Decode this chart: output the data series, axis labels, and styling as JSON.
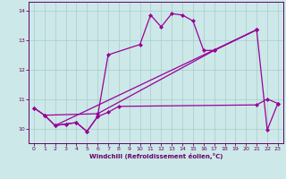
{
  "xlabel": "Windchill (Refroidissement éolien,°C)",
  "xlim": [
    -0.5,
    23.5
  ],
  "ylim": [
    9.5,
    14.3
  ],
  "yticks": [
    10,
    11,
    12,
    13,
    14
  ],
  "xticks": [
    0,
    1,
    2,
    3,
    4,
    5,
    6,
    7,
    8,
    9,
    10,
    11,
    12,
    13,
    14,
    15,
    16,
    17,
    18,
    19,
    20,
    21,
    22,
    23
  ],
  "background_color": "#cce8e8",
  "line_color": "#990099",
  "line1_x": [
    0,
    1,
    2,
    3,
    4,
    5,
    6,
    7,
    8,
    21,
    22,
    23
  ],
  "line1_y": [
    10.7,
    10.45,
    10.1,
    10.15,
    10.2,
    9.9,
    10.4,
    10.55,
    10.75,
    10.8,
    11.0,
    10.85
  ],
  "line2_x": [
    0,
    1,
    2,
    3,
    4,
    5,
    6,
    7,
    10,
    11,
    12,
    13,
    14,
    15,
    16,
    17,
    21
  ],
  "line2_y": [
    10.7,
    10.45,
    10.1,
    10.15,
    10.2,
    9.9,
    10.4,
    12.5,
    12.85,
    13.85,
    13.45,
    13.9,
    13.85,
    13.65,
    12.65,
    12.65,
    13.35
  ],
  "line3_x": [
    1,
    6,
    17,
    21
  ],
  "line3_y": [
    10.45,
    10.5,
    12.65,
    13.35
  ],
  "line4_x": [
    2,
    21
  ],
  "line4_y": [
    10.1,
    13.35
  ],
  "line5_x": [
    21,
    22,
    23
  ],
  "line5_y": [
    13.35,
    9.95,
    10.85
  ]
}
